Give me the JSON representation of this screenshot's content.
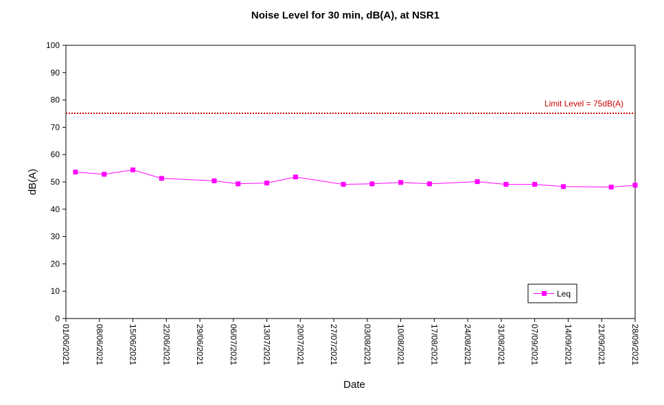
{
  "chart_data": {
    "type": "line",
    "title": "Noise Level for 30 min, dB(A), at NSR1",
    "xlabel": "Date",
    "ylabel": "dB(A)",
    "ylim": [
      0,
      100
    ],
    "yticks": [
      0,
      10,
      20,
      30,
      40,
      50,
      60,
      70,
      80,
      90,
      100
    ],
    "xlim": [
      "01/06/2021",
      "28/09/2021"
    ],
    "xticks": [
      "01/06/2021",
      "08/06/2021",
      "15/06/2021",
      "22/06/2021",
      "29/06/2021",
      "06/07/2021",
      "13/07/2021",
      "20/07/2021",
      "27/07/2021",
      "03/08/2021",
      "10/08/2021",
      "17/08/2021",
      "24/08/2021",
      "31/08/2021",
      "07/09/2021",
      "14/09/2021",
      "21/09/2021",
      "28/09/2021"
    ],
    "grid": false,
    "legend_position": "bottom-right",
    "series": [
      {
        "name": "Leq",
        "color": "#ff00ff",
        "marker": "square",
        "x": [
          "03/06/2021",
          "09/06/2021",
          "15/06/2021",
          "21/06/2021",
          "02/07/2021",
          "07/07/2021",
          "13/07/2021",
          "19/07/2021",
          "29/07/2021",
          "04/08/2021",
          "10/08/2021",
          "16/08/2021",
          "26/08/2021",
          "01/09/2021",
          "07/09/2021",
          "13/09/2021",
          "23/09/2021",
          "28/09/2021"
        ],
        "y": [
          53.6,
          52.8,
          54.4,
          51.3,
          50.4,
          49.3,
          49.6,
          51.8,
          49.1,
          49.3,
          49.8,
          49.3,
          50.1,
          49.1,
          49.1,
          48.3,
          48.1,
          48.8
        ]
      }
    ],
    "annotations": [
      {
        "type": "hline",
        "y": 75,
        "label": "Limit Level  = 75dB(A)",
        "color": "#cc0000",
        "style": "dotted"
      }
    ]
  }
}
